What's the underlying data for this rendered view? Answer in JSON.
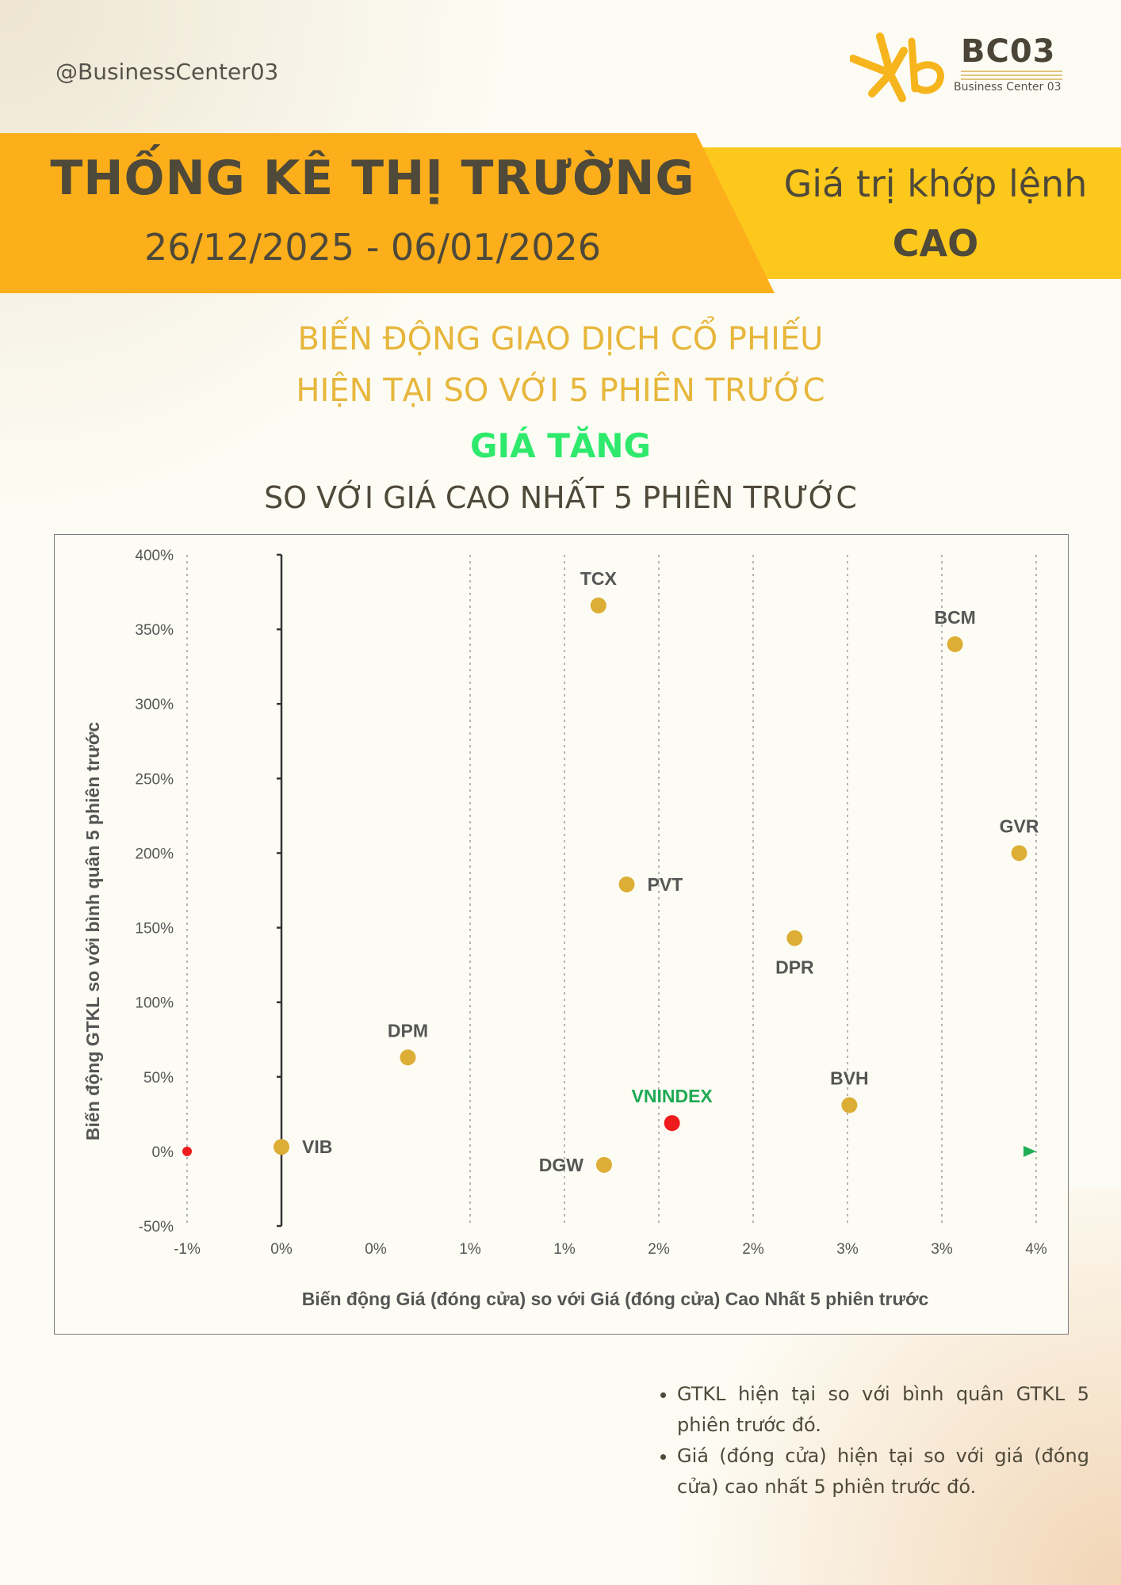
{
  "header": {
    "handle": "@BusinessCenter03",
    "logo": {
      "name": "BC03",
      "subtitle": "Business Center 03",
      "mark": "Kb",
      "color": "#f6b51d"
    },
    "title": "THỐNG KÊ THỊ TRƯỜNG",
    "date_range": "26/12/2025 - 06/01/2026",
    "right_line1": "Giá trị khớp lệnh",
    "right_line2": "CAO"
  },
  "subtitle": {
    "line1": "BIẾN ĐỘNG GIAO DỊCH CỔ PHIẾU",
    "line2": "HIỆN TẠI SO VỚI 5 PHIÊN TRƯỚC",
    "highlight": "GIÁ TĂNG",
    "line4": "SO VỚI GIÁ CAO NHẤT 5 PHIÊN TRƯỚC"
  },
  "colors": {
    "orange_band": "#fcaf1a",
    "yellow_band": "#fcc81c",
    "subtitle_gold": "#e7b63c",
    "highlight_green": "#2ee96c",
    "point_gold": "#dcae35",
    "vnindex_red": "#ee1c1c",
    "vnindex_label_green": "#1faa55"
  },
  "chart_data": {
    "type": "scatter",
    "xlabel": "Biến động Giá (đóng cửa) so với Giá (đóng cửa) Cao Nhất 5 phiên trước",
    "ylabel": "Biến động GTKL so với bình quân 5 phiên trước",
    "xlim": [
      -1,
      3.5
    ],
    "ylim": [
      -50,
      400
    ],
    "x_ticks": [
      -1,
      -0.5,
      0,
      0.5,
      1,
      1.5,
      2,
      2.5,
      3,
      3.5
    ],
    "x_tick_labels": [
      "-1%",
      "0%",
      "0%",
      "1%",
      "1%",
      "2%",
      "2%",
      "3%",
      "3%",
      "4%"
    ],
    "y_ticks": [
      -50,
      0,
      50,
      100,
      150,
      200,
      250,
      300,
      350,
      400
    ],
    "y_tick_labels": [
      "-50%",
      "0%",
      "50%",
      "100%",
      "150%",
      "200%",
      "250%",
      "300%",
      "350%",
      "400%"
    ],
    "grid": {
      "x": true,
      "y": false
    },
    "points": [
      {
        "label": "TCX",
        "x": 1.18,
        "y": 366,
        "label_pos": "above"
      },
      {
        "label": "BCM",
        "x": 3.07,
        "y": 340,
        "label_pos": "above"
      },
      {
        "label": "GVR",
        "x": 3.41,
        "y": 200,
        "label_pos": "above"
      },
      {
        "label": "PVT",
        "x": 1.33,
        "y": 179,
        "label_pos": "right"
      },
      {
        "label": "DPR",
        "x": 2.22,
        "y": 143,
        "label_pos": "below"
      },
      {
        "label": "DPM",
        "x": 0.17,
        "y": 63,
        "label_pos": "above"
      },
      {
        "label": "BVH",
        "x": 2.51,
        "y": 31,
        "label_pos": "above"
      },
      {
        "label": "VIB",
        "x": -0.5,
        "y": 3,
        "label_pos": "right"
      },
      {
        "label": "DGW",
        "x": 1.21,
        "y": -9,
        "label_pos": "left"
      },
      {
        "label": "VNINDEX",
        "x": 1.57,
        "y": 19,
        "label_pos": "above",
        "highlight": true
      }
    ]
  },
  "notes": [
    "GTKL hiện tại so với bình quân GTKL 5 phiên trước đó.",
    "Giá (đóng cửa) hiện tại so với giá (đóng cửa) cao nhất 5 phiên trước đó."
  ]
}
